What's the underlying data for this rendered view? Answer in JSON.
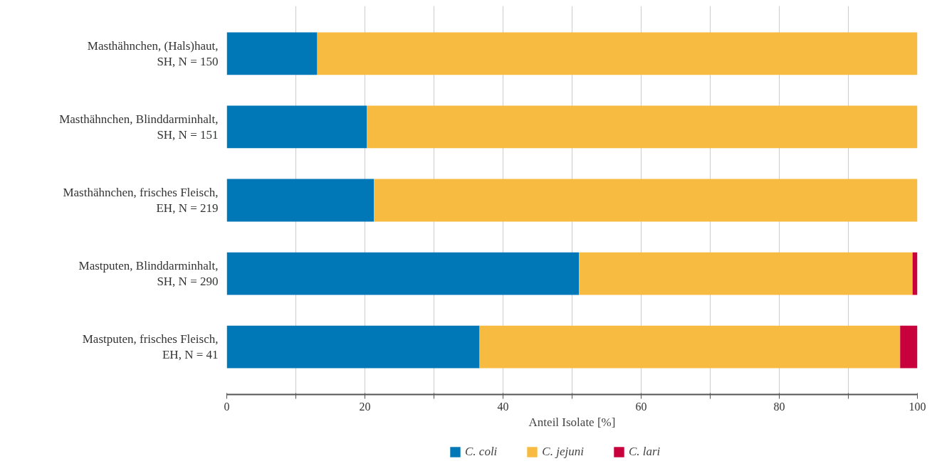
{
  "chart_data": {
    "type": "bar",
    "orientation": "horizontal",
    "stacked": true,
    "xlabel": "Anteil Isolate [%]",
    "categories": [
      "Masthähnchen, (Hals)haut,\nSH, N = 150",
      "Masthähnchen, Blinddarminhalt,\nSH, N = 151",
      "Masthähnchen, frisches Fleisch,\nEH, N = 219",
      "Mastputen, Blinddarminhalt,\nSH, N = 290",
      "Mastputen, frisches Fleisch,\nEH, N = 41"
    ],
    "series": [
      {
        "name": "C. coli",
        "color": "#0077b6",
        "values": [
          13.1,
          20.3,
          21.3,
          51.0,
          36.6
        ]
      },
      {
        "name": "C. jejuni",
        "color": "#f6bb40",
        "values": [
          86.9,
          79.7,
          78.7,
          48.3,
          60.9
        ]
      },
      {
        "name": "C. lari",
        "color": "#c8003c",
        "values": [
          0,
          0,
          0,
          0.7,
          2.5
        ]
      }
    ],
    "xlim": [
      0,
      100
    ],
    "xticks": [
      0,
      {
        "value": 10,
        "label": null
      },
      20,
      {
        "value": 30,
        "label": null
      },
      40,
      {
        "value": 50,
        "label": null
      },
      60,
      {
        "value": 70,
        "label": null
      },
      80,
      {
        "value": 90,
        "label": null
      },
      100
    ],
    "grid": "x",
    "legend": "bottom left"
  }
}
